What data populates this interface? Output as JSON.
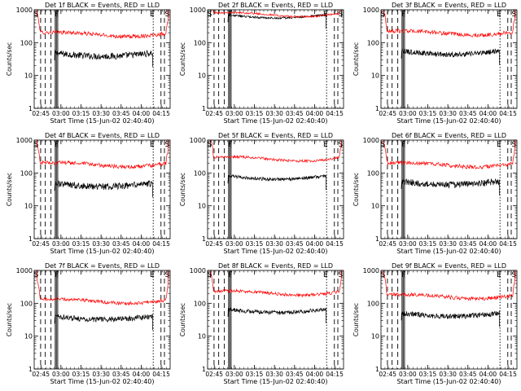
{
  "chart_data": [
    {
      "type": "line",
      "title": "Det 1f BLACK = Events, RED = LLD",
      "xlabel": "Start Time (15-Jun-02 02:40:40)",
      "ylabel": "Counts/sec",
      "xlim": [
        2.6667,
        4.3611
      ],
      "ylim": [
        1,
        1000
      ],
      "yscale": "log",
      "yticks": [
        "1",
        "10",
        "100",
        "1000"
      ],
      "xticks": [
        "02:45",
        "03:00",
        "03:15",
        "03:30",
        "03:45",
        "04:00",
        "04:15"
      ],
      "markers": [
        {
          "label": "S",
          "t": 2.702
        },
        {
          "label": "F",
          "t": 2.958
        },
        {
          "label": "E",
          "t": 4.147
        },
        {
          "label": "S",
          "t": 4.334
        }
      ],
      "series": [
        {
          "name": "Events",
          "color": "#000000",
          "start": 2.92,
          "end": 4.142,
          "level": 48,
          "noise": 0.1
        },
        {
          "name": "LLD",
          "color": "#ff0000",
          "start": 2.67,
          "end": 4.36,
          "level": 200,
          "noise": 0.06
        }
      ]
    },
    {
      "type": "line",
      "title": "Det 2f BLACK = Events, RED = LLD",
      "xlabel": "Start Time (15-Jun-02 02:40:40)",
      "ylabel": "Counts/sec",
      "xlim": [
        2.6667,
        4.3611
      ],
      "ylim": [
        1,
        1000
      ],
      "yscale": "log",
      "yticks": [
        "1",
        "10",
        "100",
        "1000"
      ],
      "xticks": [
        "02:45",
        "03:00",
        "03:15",
        "03:30",
        "03:45",
        "04:00",
        "04:15"
      ],
      "markers": [
        {
          "label": "S",
          "t": 2.702
        },
        {
          "label": "F",
          "t": 2.958
        },
        {
          "label": "E",
          "t": 4.147
        },
        {
          "label": "S",
          "t": 4.334
        }
      ],
      "series": [
        {
          "name": "Events",
          "color": "#000000",
          "start": 2.92,
          "end": 4.142,
          "level": 700,
          "noise": 0.03
        },
        {
          "name": "LLD",
          "color": "#ff0000",
          "start": 2.67,
          "end": 4.36,
          "level": 800,
          "noise": 0.03
        }
      ]
    },
    {
      "type": "line",
      "title": "Det 3f BLACK = Events, RED = LLD",
      "xlabel": "Start Time (15-Jun-02 02:40:40)",
      "ylabel": "Counts/sec",
      "xlim": [
        2.6667,
        4.3611
      ],
      "ylim": [
        1,
        1000
      ],
      "yscale": "log",
      "yticks": [
        "1",
        "10",
        "100",
        "1000"
      ],
      "xticks": [
        "02:45",
        "03:00",
        "03:15",
        "03:30",
        "03:45",
        "04:00",
        "04:15"
      ],
      "markers": [
        {
          "label": "S",
          "t": 2.702
        },
        {
          "label": "F",
          "t": 2.958
        },
        {
          "label": "E",
          "t": 4.147
        },
        {
          "label": "S",
          "t": 4.334
        }
      ],
      "series": [
        {
          "name": "Events",
          "color": "#000000",
          "start": 2.92,
          "end": 4.142,
          "level": 55,
          "noise": 0.08
        },
        {
          "name": "LLD",
          "color": "#ff0000",
          "start": 2.67,
          "end": 4.36,
          "level": 220,
          "noise": 0.06
        }
      ]
    },
    {
      "type": "line",
      "title": "Det 4f BLACK = Events, RED = LLD",
      "xlabel": "Start Time (15-Jun-02 02:40:40)",
      "ylabel": "Counts/sec",
      "xlim": [
        2.6667,
        4.3611
      ],
      "ylim": [
        1,
        1000
      ],
      "yscale": "log",
      "yticks": [
        "1",
        "10",
        "100",
        "1000"
      ],
      "xticks": [
        "02:45",
        "03:00",
        "03:15",
        "03:30",
        "03:45",
        "04:00",
        "04:15"
      ],
      "markers": [
        {
          "label": "S",
          "t": 2.702
        },
        {
          "label": "F",
          "t": 2.958
        },
        {
          "label": "E",
          "t": 4.147
        },
        {
          "label": "S",
          "t": 4.334
        }
      ],
      "series": [
        {
          "name": "Events",
          "color": "#000000",
          "start": 2.92,
          "end": 4.142,
          "level": 48,
          "noise": 0.1
        },
        {
          "name": "LLD",
          "color": "#ff0000",
          "start": 2.67,
          "end": 4.36,
          "level": 200,
          "noise": 0.06
        }
      ]
    },
    {
      "type": "line",
      "title": "Det 5f BLACK = Events, RED = LLD",
      "xlabel": "Start Time (15-Jun-02 02:40:40)",
      "ylabel": "Counts/sec",
      "xlim": [
        2.6667,
        4.3611
      ],
      "ylim": [
        1,
        1000
      ],
      "yscale": "log",
      "yticks": [
        "1",
        "10",
        "100",
        "1000"
      ],
      "xticks": [
        "02:45",
        "03:00",
        "03:15",
        "03:30",
        "03:45",
        "04:00",
        "04:15"
      ],
      "markers": [
        {
          "label": "S",
          "t": 2.702
        },
        {
          "label": "F",
          "t": 2.958
        },
        {
          "label": "E",
          "t": 4.147
        },
        {
          "label": "S",
          "t": 4.334
        }
      ],
      "series": [
        {
          "name": "Events",
          "color": "#000000",
          "start": 2.92,
          "end": 4.142,
          "level": 80,
          "noise": 0.05
        },
        {
          "name": "LLD",
          "color": "#ff0000",
          "start": 2.67,
          "end": 4.36,
          "level": 300,
          "noise": 0.04
        }
      ]
    },
    {
      "type": "line",
      "title": "Det 6f BLACK = Events, RED = LLD",
      "xlabel": "Start Time (15-Jun-02 02:40:40)",
      "ylabel": "Counts/sec",
      "xlim": [
        2.6667,
        4.3611
      ],
      "ylim": [
        1,
        1000
      ],
      "yscale": "log",
      "yticks": [
        "1",
        "10",
        "100",
        "1000"
      ],
      "xticks": [
        "02:45",
        "03:00",
        "03:15",
        "03:30",
        "03:45",
        "04:00",
        "04:15"
      ],
      "markers": [
        {
          "label": "S",
          "t": 2.702
        },
        {
          "label": "F",
          "t": 2.958
        },
        {
          "label": "E",
          "t": 4.147
        },
        {
          "label": "S",
          "t": 4.334
        }
      ],
      "series": [
        {
          "name": "Events",
          "color": "#000000",
          "start": 2.92,
          "end": 4.142,
          "level": 55,
          "noise": 0.1
        },
        {
          "name": "LLD",
          "color": "#ff0000",
          "start": 2.67,
          "end": 4.36,
          "level": 200,
          "noise": 0.06
        }
      ]
    },
    {
      "type": "line",
      "title": "Det 7f BLACK = Events, RED = LLD",
      "xlabel": "Start Time (15-Jun-02 02:40:40)",
      "ylabel": "Counts/sec",
      "xlim": [
        2.6667,
        4.3611
      ],
      "ylim": [
        1,
        1000
      ],
      "yscale": "log",
      "yticks": [
        "1",
        "10",
        "100",
        "1000"
      ],
      "xticks": [
        "02:45",
        "03:00",
        "03:15",
        "03:30",
        "03:45",
        "04:00",
        "04:15"
      ],
      "markers": [
        {
          "label": "S",
          "t": 2.702
        },
        {
          "label": "F",
          "t": 2.958
        },
        {
          "label": "E",
          "t": 4.147
        },
        {
          "label": "S",
          "t": 4.334
        }
      ],
      "series": [
        {
          "name": "Events",
          "color": "#000000",
          "start": 2.92,
          "end": 4.142,
          "level": 40,
          "noise": 0.08
        },
        {
          "name": "LLD",
          "color": "#ff0000",
          "start": 2.67,
          "end": 4.36,
          "level": 130,
          "noise": 0.05
        }
      ]
    },
    {
      "type": "line",
      "title": "Det 8f BLACK = Events, RED = LLD",
      "xlabel": "Start Time (15-Jun-02 02:40:40)",
      "ylabel": "Counts/sec",
      "xlim": [
        2.6667,
        4.3611
      ],
      "ylim": [
        1,
        1000
      ],
      "yscale": "log",
      "yticks": [
        "1",
        "10",
        "100",
        "1000"
      ],
      "xticks": [
        "02:45",
        "03:00",
        "03:15",
        "03:30",
        "03:45",
        "04:00",
        "04:15"
      ],
      "markers": [
        {
          "label": "S",
          "t": 2.702
        },
        {
          "label": "F",
          "t": 2.958
        },
        {
          "label": "E",
          "t": 4.147
        },
        {
          "label": "S",
          "t": 4.334
        }
      ],
      "series": [
        {
          "name": "Events",
          "color": "#000000",
          "start": 2.92,
          "end": 4.142,
          "level": 65,
          "noise": 0.06
        },
        {
          "name": "LLD",
          "color": "#ff0000",
          "start": 2.67,
          "end": 4.36,
          "level": 230,
          "noise": 0.05
        }
      ]
    },
    {
      "type": "line",
      "title": "Det 9f BLACK = Events, RED = LLD",
      "xlabel": "Start Time (15-Jun-02 02:40:40)",
      "ylabel": "Counts/sec",
      "xlim": [
        2.6667,
        4.3611
      ],
      "ylim": [
        1,
        1000
      ],
      "yscale": "log",
      "yticks": [
        "1",
        "10",
        "100",
        "1000"
      ],
      "xticks": [
        "02:45",
        "03:00",
        "03:15",
        "03:30",
        "03:45",
        "04:00",
        "04:15"
      ],
      "markers": [
        {
          "label": "S",
          "t": 2.702
        },
        {
          "label": "F",
          "t": 2.958
        },
        {
          "label": "E",
          "t": 4.147
        },
        {
          "label": "S",
          "t": 4.334
        }
      ],
      "series": [
        {
          "name": "Events",
          "color": "#000000",
          "start": 2.92,
          "end": 4.142,
          "level": 50,
          "noise": 0.08
        },
        {
          "name": "LLD",
          "color": "#ff0000",
          "start": 2.67,
          "end": 4.36,
          "level": 180,
          "noise": 0.06
        }
      ]
    }
  ]
}
